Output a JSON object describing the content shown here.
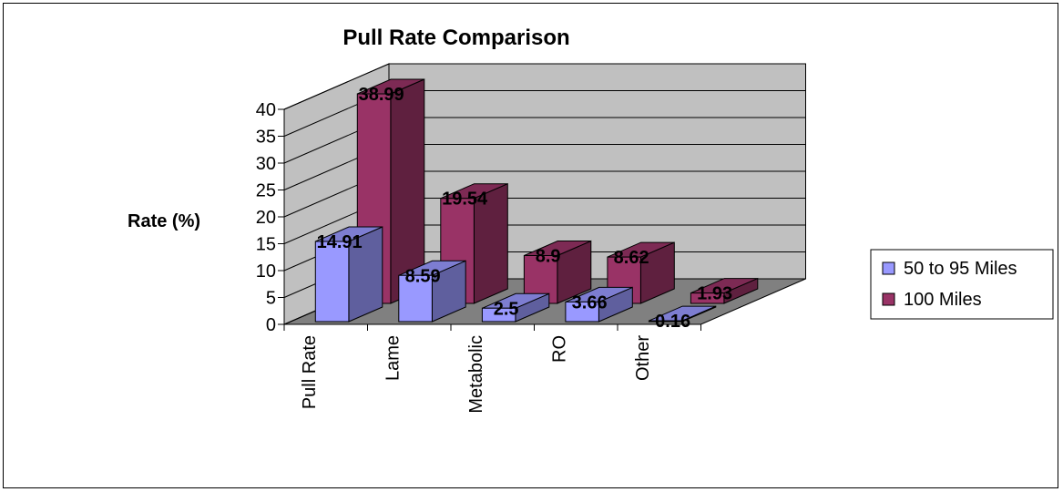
{
  "chart_data": {
    "type": "bar",
    "title": "Pull Rate Comparison",
    "xlabel": "",
    "ylabel": "Rate (%)",
    "categories": [
      "Pull Rate",
      "Lame",
      "Metabolic",
      "RO",
      "Other"
    ],
    "series": [
      {
        "name": "50 to 95 Miles",
        "values": [
          14.91,
          8.59,
          2.5,
          3.66,
          0.16
        ],
        "labels": [
          "14.91",
          "8.59",
          "2.5",
          "3.66",
          "0.16"
        ]
      },
      {
        "name": "100 Miles",
        "values": [
          38.99,
          19.54,
          8.9,
          8.62,
          1.93
        ],
        "labels": [
          "38.99",
          "19.54",
          "8.9",
          "8.62",
          "1.93"
        ]
      }
    ],
    "ylim": [
      0,
      40
    ],
    "yticks": [
      "0",
      "5",
      "10",
      "15",
      "20",
      "25",
      "30",
      "35",
      "40"
    ],
    "grid": true,
    "three_d": true,
    "legend_position": "right",
    "colors": {
      "series1": "#9999ff",
      "series2": "#993366",
      "wall": "#c0c0c0",
      "floor": "#808080"
    }
  }
}
